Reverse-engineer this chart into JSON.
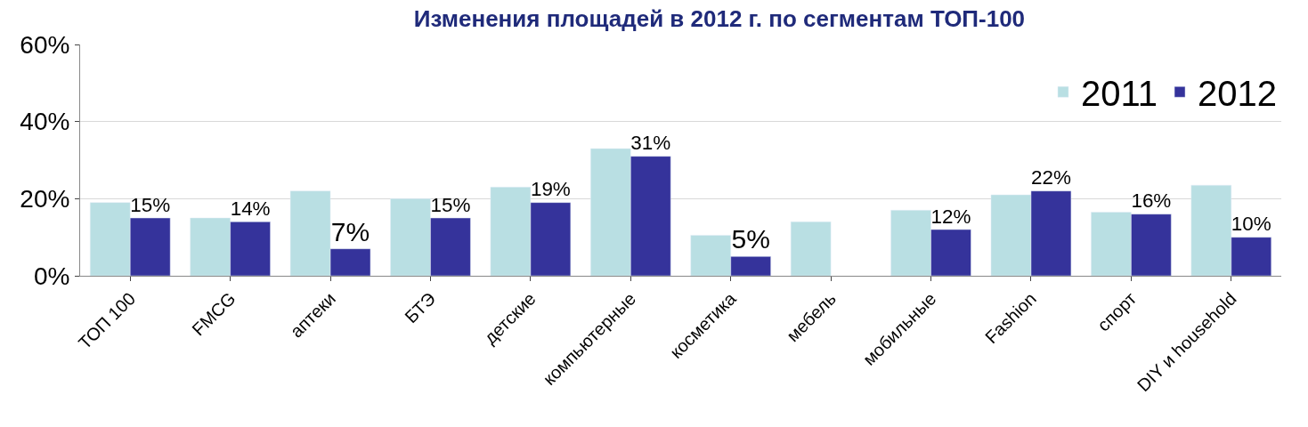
{
  "chart_data": {
    "type": "bar",
    "title": "Изменения площадей в 2012 г. по сегментам ТОП-100",
    "categories": [
      "ТОП 100",
      "FMCG",
      "аптеки",
      "БТЭ",
      "детские",
      "компьютерные",
      "косметика",
      "мебель",
      "мобильные",
      "Fashion",
      "спорт",
      "DIY и household"
    ],
    "series": [
      {
        "name": "2011",
        "color": "#b9dfe3",
        "values": [
          19,
          15,
          22,
          20,
          23,
          33,
          10.5,
          14,
          17,
          21,
          16.5,
          23.5
        ]
      },
      {
        "name": "2012",
        "color": "#35339b",
        "values": [
          15,
          14,
          7,
          15,
          19,
          31,
          5,
          null,
          12,
          22,
          16,
          10
        ],
        "value_labels": [
          "15%",
          "14%",
          "7%",
          "15%",
          "19%",
          "31%",
          "5%",
          null,
          "12%",
          "22%",
          "16%",
          "10%"
        ]
      }
    ],
    "ylim": [
      0,
      60
    ],
    "yticks": [
      {
        "value": 0,
        "label": "0%"
      },
      {
        "value": 20,
        "label": "20%"
      },
      {
        "value": 40,
        "label": "40%"
      },
      {
        "value": 60,
        "label": "60%"
      }
    ],
    "grid": "y",
    "legend": "top right"
  }
}
